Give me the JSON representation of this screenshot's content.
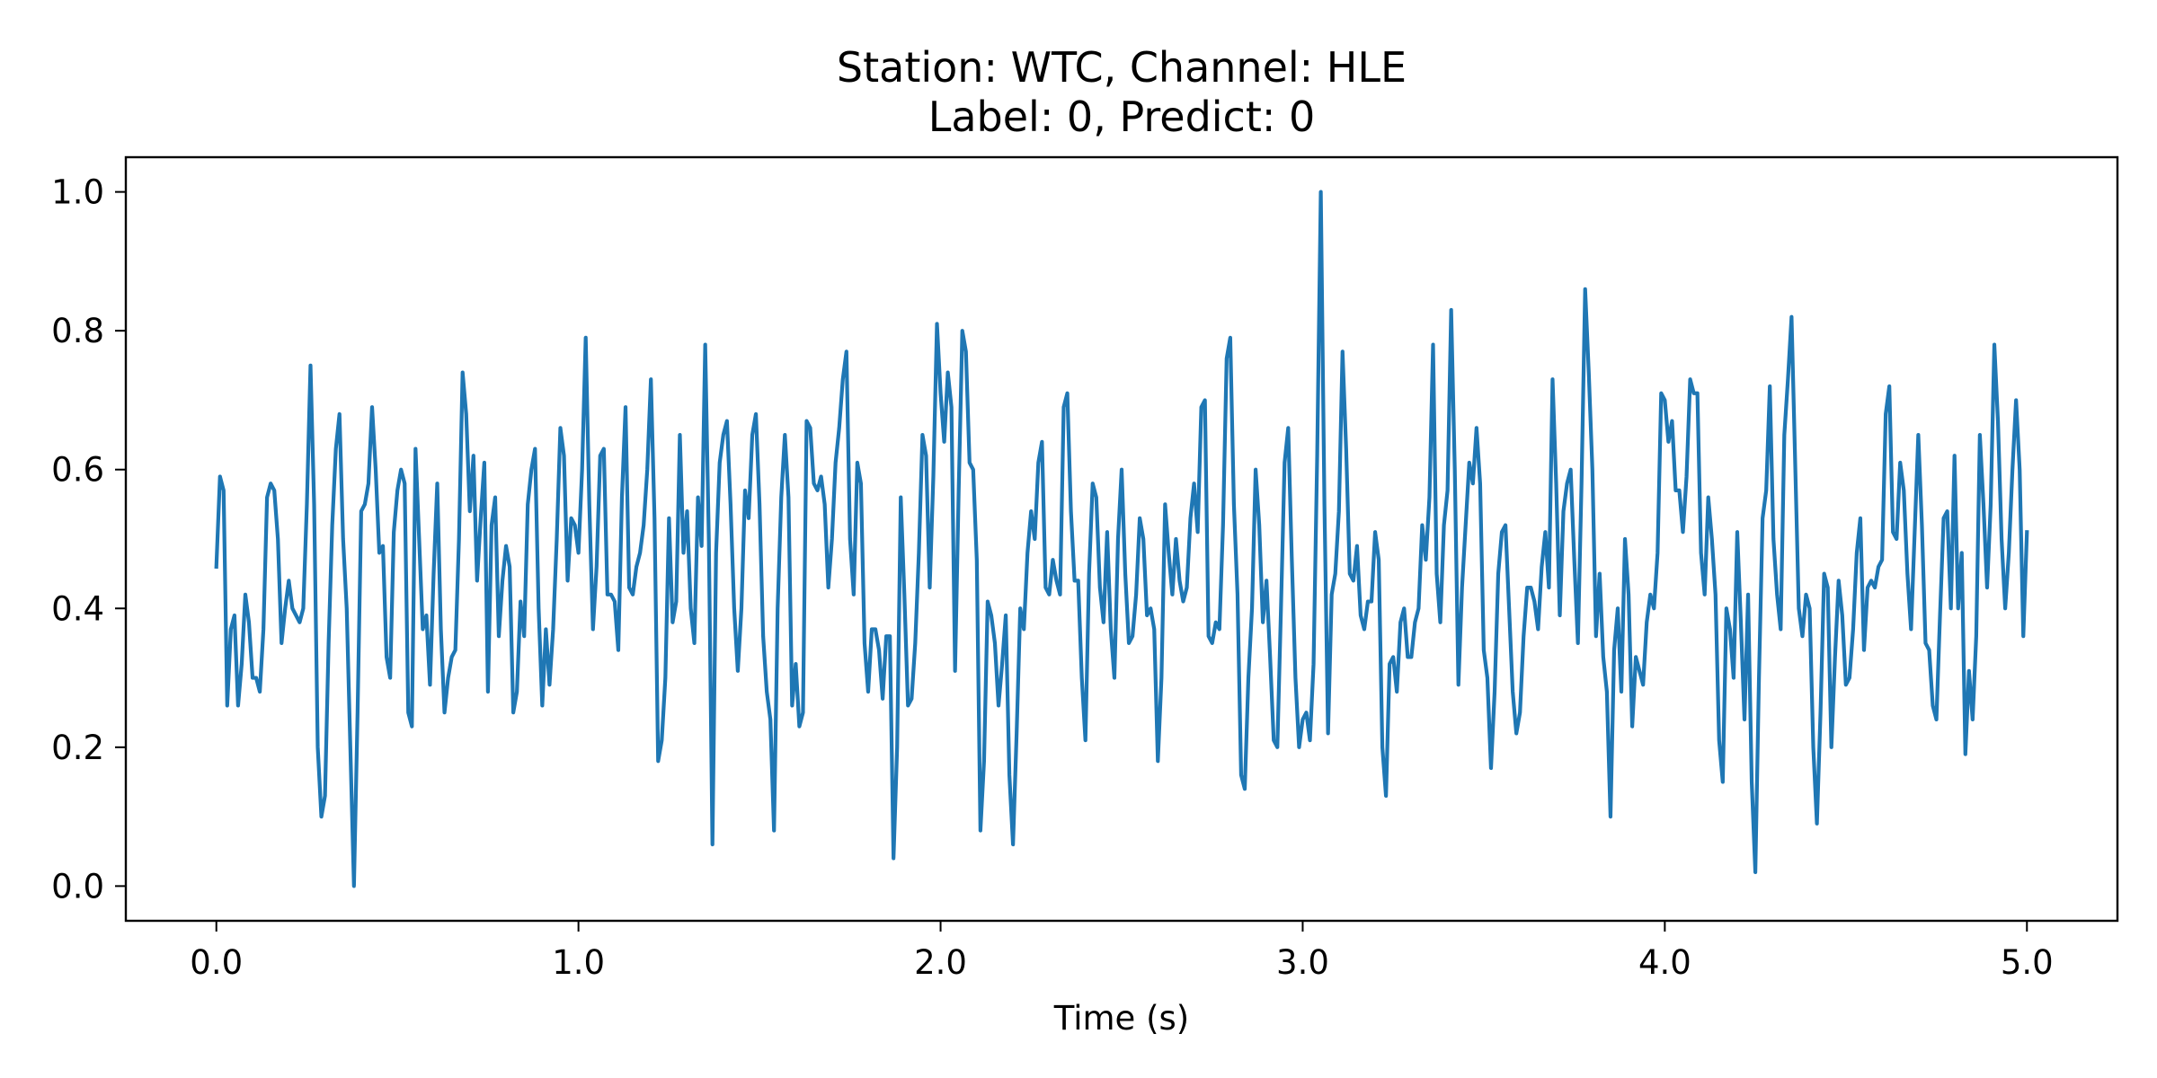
{
  "chart_data": {
    "type": "line",
    "title": "Station: WTC, Channel: HLE",
    "subtitle": "Label: 0, Predict: 0",
    "xlabel": "Time (s)",
    "ylabel": "",
    "xlim": [
      -0.25,
      5.25
    ],
    "ylim": [
      -0.05,
      1.05
    ],
    "x_ticks": [
      0.0,
      1.0,
      2.0,
      3.0,
      4.0,
      5.0
    ],
    "x_tick_labels": [
      "0.0",
      "1.0",
      "2.0",
      "3.0",
      "4.0",
      "5.0"
    ],
    "y_ticks": [
      0.0,
      0.2,
      0.4,
      0.6,
      0.8,
      1.0
    ],
    "y_tick_labels": [
      "0.0",
      "0.2",
      "0.4",
      "0.6",
      "0.8",
      "1.0"
    ],
    "grid": false,
    "line_color": "#1f77b4",
    "series": [
      {
        "x": [
          0.0,
          0.01,
          0.02,
          0.03,
          0.04,
          0.05,
          0.06,
          0.07,
          0.08,
          0.09,
          0.1,
          0.11,
          0.12,
          0.13,
          0.14,
          0.15,
          0.16,
          0.17,
          0.18,
          0.19,
          0.2,
          0.21,
          0.22,
          0.23,
          0.24,
          0.25,
          0.26,
          0.27,
          0.28,
          0.29,
          0.3,
          0.31,
          0.32,
          0.33,
          0.34,
          0.35,
          0.36,
          0.37,
          0.38,
          0.39,
          0.4,
          0.41,
          0.42,
          0.43,
          0.44,
          0.45,
          0.46,
          0.47,
          0.48,
          0.49,
          0.5,
          0.51,
          0.52,
          0.53,
          0.54,
          0.55,
          0.56,
          0.57,
          0.58,
          0.59,
          0.6,
          0.61,
          0.62,
          0.63,
          0.64,
          0.65,
          0.66,
          0.67,
          0.68,
          0.69,
          0.7,
          0.71,
          0.72,
          0.73,
          0.74,
          0.75,
          0.76,
          0.77,
          0.78,
          0.79,
          0.8,
          0.81,
          0.82,
          0.83,
          0.84,
          0.85,
          0.86,
          0.87,
          0.88,
          0.89,
          0.9,
          0.91,
          0.92,
          0.93,
          0.94,
          0.95,
          0.96,
          0.97,
          0.98,
          0.99,
          1.0,
          1.01,
          1.02,
          1.03,
          1.04,
          1.05,
          1.06,
          1.07,
          1.08,
          1.09,
          1.1,
          1.11,
          1.12,
          1.13,
          1.14,
          1.15,
          1.16,
          1.17,
          1.18,
          1.19,
          1.2,
          1.21,
          1.22,
          1.23,
          1.24,
          1.25,
          1.26,
          1.27,
          1.28,
          1.29,
          1.3,
          1.31,
          1.32,
          1.33,
          1.34,
          1.35,
          1.36,
          1.37,
          1.38,
          1.39,
          1.4,
          1.41,
          1.42,
          1.43,
          1.44,
          1.45,
          1.46,
          1.47,
          1.48,
          1.49,
          1.5,
          1.51,
          1.52,
          1.53,
          1.54,
          1.55,
          1.56,
          1.57,
          1.58,
          1.59,
          1.6,
          1.61,
          1.62,
          1.63,
          1.64,
          1.65,
          1.66,
          1.67,
          1.68,
          1.69,
          1.7,
          1.71,
          1.72,
          1.73,
          1.74,
          1.75,
          1.76,
          1.77,
          1.78,
          1.79,
          1.8,
          1.81,
          1.82,
          1.83,
          1.84,
          1.85,
          1.86,
          1.87,
          1.88,
          1.89,
          1.9,
          1.91,
          1.92,
          1.93,
          1.94,
          1.95,
          1.96,
          1.97,
          1.98,
          1.99,
          2.0,
          2.01,
          2.02,
          2.03,
          2.04,
          2.05,
          2.06,
          2.07,
          2.08,
          2.09,
          2.1,
          2.11,
          2.12,
          2.13,
          2.14,
          2.15,
          2.16,
          2.17,
          2.18,
          2.19,
          2.2,
          2.21,
          2.22,
          2.23,
          2.24,
          2.25,
          2.26,
          2.27,
          2.28,
          2.29,
          2.3,
          2.31,
          2.32,
          2.33,
          2.34,
          2.35,
          2.36,
          2.37,
          2.38,
          2.39,
          2.4,
          2.41,
          2.42,
          2.43,
          2.44,
          2.45,
          2.46,
          2.47,
          2.48,
          2.49,
          2.5,
          2.51,
          2.52,
          2.53,
          2.54,
          2.55,
          2.56,
          2.57,
          2.58,
          2.59,
          2.6,
          2.61,
          2.62,
          2.63,
          2.64,
          2.65,
          2.66,
          2.67,
          2.68,
          2.69,
          2.7,
          2.71,
          2.72,
          2.73,
          2.74,
          2.75,
          2.76,
          2.77,
          2.78,
          2.79,
          2.8,
          2.81,
          2.82,
          2.83,
          2.84,
          2.85,
          2.86,
          2.87,
          2.88,
          2.89,
          2.9,
          2.91,
          2.92,
          2.93,
          2.94,
          2.95,
          2.96,
          2.97,
          2.98,
          2.99,
          3.0,
          3.01,
          3.02,
          3.03,
          3.04,
          3.05,
          3.06,
          3.07,
          3.08,
          3.09,
          3.1,
          3.11,
          3.12,
          3.13,
          3.14,
          3.15,
          3.16,
          3.17,
          3.18,
          3.19,
          3.2,
          3.21,
          3.22,
          3.23,
          3.24,
          3.25,
          3.26,
          3.27,
          3.28,
          3.29,
          3.3,
          3.31,
          3.32,
          3.33,
          3.34,
          3.35,
          3.36,
          3.37,
          3.38,
          3.39,
          3.4,
          3.41,
          3.42,
          3.43,
          3.44,
          3.45,
          3.46,
          3.47,
          3.48,
          3.49,
          3.5,
          3.51,
          3.52,
          3.53,
          3.54,
          3.55,
          3.56,
          3.57,
          3.58,
          3.59,
          3.6,
          3.61,
          3.62,
          3.63,
          3.64,
          3.65,
          3.66,
          3.67,
          3.68,
          3.69,
          3.7,
          3.71,
          3.72,
          3.73,
          3.74,
          3.75,
          3.76,
          3.77,
          3.78,
          3.79,
          3.8,
          3.81,
          3.82,
          3.83,
          3.84,
          3.85,
          3.86,
          3.87,
          3.88,
          3.89,
          3.9,
          3.91,
          3.92,
          3.93,
          3.94,
          3.95,
          3.96,
          3.97,
          3.98,
          3.99,
          4.0,
          4.01,
          4.02,
          4.03,
          4.04,
          4.05,
          4.06,
          4.07,
          4.08,
          4.09,
          4.1,
          4.11,
          4.12,
          4.13,
          4.14,
          4.15,
          4.16,
          4.17,
          4.18,
          4.19,
          4.2,
          4.21,
          4.22,
          4.23,
          4.24,
          4.25,
          4.26,
          4.27,
          4.28,
          4.29,
          4.3,
          4.31,
          4.32,
          4.33,
          4.34,
          4.35,
          4.36,
          4.37,
          4.38,
          4.39,
          4.4,
          4.41,
          4.42,
          4.43,
          4.44,
          4.45,
          4.46,
          4.47,
          4.48,
          4.49,
          4.5,
          4.51,
          4.52,
          4.53,
          4.54,
          4.55,
          4.56,
          4.57,
          4.58,
          4.59,
          4.6,
          4.61,
          4.62,
          4.63,
          4.64,
          4.65,
          4.66,
          4.67,
          4.68,
          4.69,
          4.7,
          4.71,
          4.72,
          4.73,
          4.74,
          4.75,
          4.76,
          4.77,
          4.78,
          4.79,
          4.8,
          4.81,
          4.82,
          4.83,
          4.84,
          4.85,
          4.86,
          4.87,
          4.88,
          4.89,
          4.9,
          4.91,
          4.92,
          4.93,
          4.94,
          4.95,
          4.96,
          4.97,
          4.98,
          4.99,
          5.0
        ],
        "values": [
          0.46,
          0.59,
          0.57,
          0.26,
          0.37,
          0.39,
          0.26,
          0.32,
          0.42,
          0.38,
          0.3,
          0.3,
          0.28,
          0.37,
          0.56,
          0.58,
          0.57,
          0.5,
          0.35,
          0.4,
          0.44,
          0.4,
          0.39,
          0.38,
          0.4,
          0.55,
          0.75,
          0.55,
          0.2,
          0.1,
          0.13,
          0.35,
          0.52,
          0.63,
          0.68,
          0.5,
          0.4,
          0.2,
          0.0,
          0.25,
          0.54,
          0.55,
          0.58,
          0.69,
          0.6,
          0.48,
          0.49,
          0.33,
          0.3,
          0.51,
          0.57,
          0.6,
          0.58,
          0.25,
          0.23,
          0.63,
          0.5,
          0.37,
          0.39,
          0.29,
          0.45,
          0.58,
          0.37,
          0.25,
          0.3,
          0.33,
          0.34,
          0.5,
          0.74,
          0.68,
          0.54,
          0.62,
          0.44,
          0.53,
          0.61,
          0.28,
          0.52,
          0.56,
          0.36,
          0.44,
          0.49,
          0.46,
          0.25,
          0.28,
          0.41,
          0.36,
          0.55,
          0.6,
          0.63,
          0.4,
          0.26,
          0.37,
          0.29,
          0.37,
          0.5,
          0.66,
          0.62,
          0.44,
          0.53,
          0.52,
          0.48,
          0.6,
          0.79,
          0.55,
          0.37,
          0.46,
          0.62,
          0.63,
          0.42,
          0.42,
          0.41,
          0.34,
          0.56,
          0.69,
          0.43,
          0.42,
          0.46,
          0.48,
          0.52,
          0.6,
          0.73,
          0.53,
          0.18,
          0.21,
          0.3,
          0.53,
          0.38,
          0.41,
          0.65,
          0.48,
          0.54,
          0.4,
          0.35,
          0.56,
          0.49,
          0.78,
          0.5,
          0.06,
          0.48,
          0.61,
          0.65,
          0.67,
          0.55,
          0.4,
          0.31,
          0.4,
          0.57,
          0.53,
          0.65,
          0.68,
          0.55,
          0.36,
          0.28,
          0.24,
          0.08,
          0.4,
          0.56,
          0.65,
          0.56,
          0.26,
          0.32,
          0.23,
          0.25,
          0.67,
          0.66,
          0.58,
          0.57,
          0.59,
          0.55,
          0.43,
          0.5,
          0.61,
          0.66,
          0.73,
          0.77,
          0.5,
          0.42,
          0.61,
          0.58,
          0.35,
          0.28,
          0.37,
          0.37,
          0.34,
          0.27,
          0.36,
          0.36,
          0.04,
          0.2,
          0.56,
          0.42,
          0.26,
          0.27,
          0.35,
          0.48,
          0.65,
          0.62,
          0.43,
          0.59,
          0.81,
          0.71,
          0.64,
          0.74,
          0.69,
          0.31,
          0.57,
          0.8,
          0.77,
          0.61,
          0.6,
          0.47,
          0.08,
          0.18,
          0.41,
          0.39,
          0.35,
          0.26,
          0.32,
          0.39,
          0.16,
          0.06,
          0.22,
          0.4,
          0.37,
          0.48,
          0.54,
          0.5,
          0.61,
          0.64,
          0.43,
          0.42,
          0.47,
          0.44,
          0.42,
          0.69,
          0.71,
          0.54,
          0.44,
          0.44,
          0.3,
          0.21,
          0.45,
          0.58,
          0.56,
          0.43,
          0.38,
          0.51,
          0.37,
          0.3,
          0.5,
          0.6,
          0.45,
          0.35,
          0.36,
          0.42,
          0.53,
          0.5,
          0.39,
          0.4,
          0.37,
          0.18,
          0.3,
          0.55,
          0.48,
          0.42,
          0.5,
          0.44,
          0.41,
          0.43,
          0.53,
          0.58,
          0.51,
          0.69,
          0.7,
          0.36,
          0.35,
          0.38,
          0.37,
          0.52,
          0.76,
          0.79,
          0.55,
          0.42,
          0.16,
          0.14,
          0.3,
          0.4,
          0.6,
          0.52,
          0.38,
          0.44,
          0.33,
          0.21,
          0.2,
          0.4,
          0.61,
          0.66,
          0.47,
          0.3,
          0.2,
          0.24,
          0.25,
          0.21,
          0.32,
          0.62,
          1.0,
          0.55,
          0.22,
          0.42,
          0.45,
          0.54,
          0.77,
          0.63,
          0.45,
          0.44,
          0.49,
          0.39,
          0.37,
          0.41,
          0.41,
          0.51,
          0.47,
          0.2,
          0.13,
          0.32,
          0.33,
          0.28,
          0.38,
          0.4,
          0.33,
          0.33,
          0.38,
          0.4,
          0.52,
          0.47,
          0.56,
          0.78,
          0.45,
          0.38,
          0.52,
          0.57,
          0.83,
          0.6,
          0.29,
          0.43,
          0.52,
          0.61,
          0.58,
          0.66,
          0.58,
          0.34,
          0.3,
          0.17,
          0.28,
          0.45,
          0.51,
          0.52,
          0.4,
          0.28,
          0.22,
          0.25,
          0.36,
          0.43,
          0.43,
          0.41,
          0.37,
          0.46,
          0.51,
          0.43,
          0.73,
          0.58,
          0.39,
          0.54,
          0.58,
          0.6,
          0.47,
          0.35,
          0.58,
          0.86,
          0.74,
          0.6,
          0.36,
          0.45,
          0.33,
          0.28,
          0.1,
          0.34,
          0.4,
          0.28,
          0.5,
          0.42,
          0.23,
          0.33,
          0.31,
          0.29,
          0.38,
          0.42,
          0.4,
          0.48,
          0.71,
          0.7,
          0.64,
          0.67,
          0.57,
          0.57,
          0.51,
          0.59,
          0.73,
          0.71,
          0.71,
          0.48,
          0.42,
          0.56,
          0.5,
          0.42,
          0.21,
          0.15,
          0.4,
          0.37,
          0.3,
          0.51,
          0.38,
          0.24,
          0.42,
          0.15,
          0.02,
          0.3,
          0.53,
          0.57,
          0.72,
          0.5,
          0.42,
          0.37,
          0.65,
          0.73,
          0.82,
          0.61,
          0.4,
          0.36,
          0.42,
          0.4,
          0.2,
          0.09,
          0.25,
          0.45,
          0.43,
          0.2,
          0.33,
          0.44,
          0.39,
          0.29,
          0.3,
          0.37,
          0.48,
          0.53,
          0.34,
          0.43,
          0.44,
          0.43,
          0.46,
          0.47,
          0.68,
          0.72,
          0.51,
          0.5,
          0.61,
          0.57,
          0.45,
          0.37,
          0.51,
          0.65,
          0.52,
          0.35,
          0.34,
          0.26,
          0.24,
          0.39,
          0.53,
          0.54,
          0.4,
          0.62,
          0.4,
          0.48,
          0.19,
          0.31,
          0.24,
          0.36,
          0.65,
          0.55,
          0.43,
          0.55,
          0.78,
          0.67,
          0.5,
          0.4,
          0.48,
          0.6,
          0.7,
          0.6,
          0.36,
          0.51
        ]
      }
    ]
  }
}
